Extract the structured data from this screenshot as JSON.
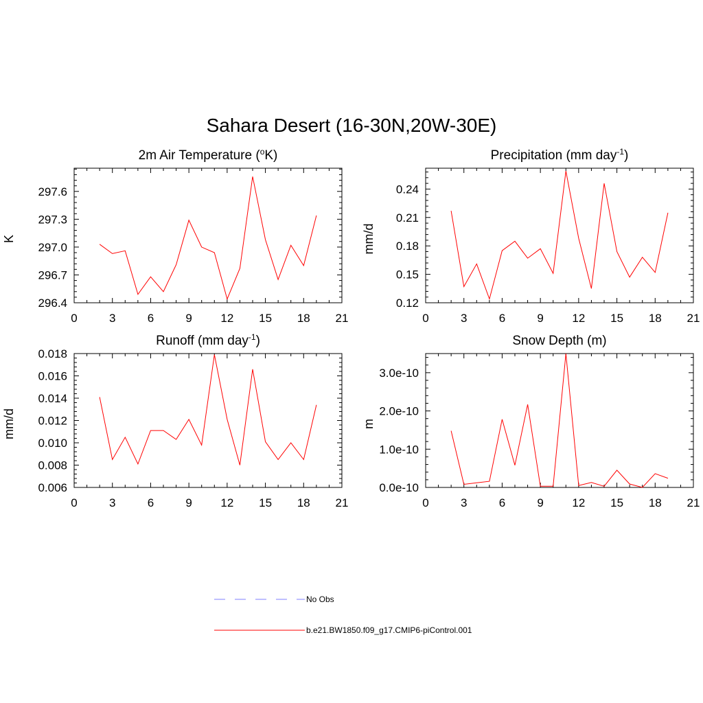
{
  "title": "Sahara Desert (16-30N,20W-30E)",
  "colors": {
    "model_line": "#ff0000",
    "obs_line": "#9999ff",
    "axis": "#000000"
  },
  "legend": [
    {
      "label": "No Obs",
      "style": "dashed",
      "color": "#9999ff"
    },
    {
      "label": "b.e21.BW1850.f09_g17.CMIP6-piControl.001",
      "style": "solid",
      "color": "#ff0000"
    }
  ],
  "chart_data": [
    {
      "type": "line",
      "title": "2m Air Temperature (",
      "title_sup": "o",
      "title_suffix": "K)",
      "ylabel": "K",
      "xlim": [
        0,
        21
      ],
      "ylim": [
        296.4,
        297.85
      ],
      "xticks": [
        "0",
        "3",
        "6",
        "9",
        "12",
        "15",
        "18",
        "21"
      ],
      "yticks": [
        296.4,
        296.7,
        297.0,
        297.3,
        297.6
      ],
      "ytick_labels": [
        "296.4",
        "296.7",
        "297.0",
        "297.3",
        "297.6"
      ],
      "series": [
        {
          "name": "b.e21.BW1850.f09_g17.CMIP6-piControl.001",
          "x": [
            2,
            3,
            4,
            5,
            6,
            7,
            8,
            9,
            10,
            11,
            12,
            13,
            14,
            15,
            16,
            17,
            18,
            19
          ],
          "values": [
            297.03,
            296.93,
            296.96,
            296.49,
            296.68,
            296.52,
            296.81,
            297.29,
            297.0,
            296.94,
            296.44,
            296.77,
            297.76,
            297.08,
            296.65,
            297.02,
            296.8,
            297.34
          ]
        }
      ]
    },
    {
      "type": "line",
      "title": "Precipitation (mm day",
      "title_sup": "-1",
      "title_suffix": ")",
      "ylabel": "mm/d",
      "xlim": [
        0,
        21
      ],
      "ylim": [
        0.12,
        0.262
      ],
      "xticks": [
        "0",
        "3",
        "6",
        "9",
        "12",
        "15",
        "18",
        "21"
      ],
      "yticks": [
        0.12,
        0.15,
        0.18,
        0.21,
        0.24
      ],
      "ytick_labels": [
        "0.12",
        "0.15",
        "0.18",
        "0.21",
        "0.24"
      ],
      "series": [
        {
          "name": "b.e21.BW1850.f09_g17.CMIP6-piControl.001",
          "x": [
            2,
            3,
            4,
            5,
            6,
            7,
            8,
            9,
            10,
            11,
            12,
            13,
            14,
            15,
            16,
            17,
            18,
            19
          ],
          "values": [
            0.217,
            0.137,
            0.161,
            0.124,
            0.175,
            0.185,
            0.167,
            0.177,
            0.151,
            0.259,
            0.188,
            0.135,
            0.246,
            0.174,
            0.147,
            0.168,
            0.152,
            0.215
          ]
        }
      ]
    },
    {
      "type": "line",
      "title": "Runoff (mm day",
      "title_sup": "-1",
      "title_suffix": ")",
      "ylabel": "mm/d",
      "xlim": [
        0,
        21
      ],
      "ylim": [
        0.006,
        0.018
      ],
      "xticks": [
        "0",
        "3",
        "6",
        "9",
        "12",
        "15",
        "18",
        "21"
      ],
      "yticks": [
        0.006,
        0.008,
        0.01,
        0.012,
        0.014,
        0.016,
        0.018
      ],
      "ytick_labels": [
        "0.006",
        "0.008",
        "0.010",
        "0.012",
        "0.014",
        "0.016",
        "0.018"
      ],
      "series": [
        {
          "name": "b.e21.BW1850.f09_g17.CMIP6-piControl.001",
          "x": [
            2,
            3,
            4,
            5,
            6,
            7,
            8,
            9,
            10,
            11,
            12,
            13,
            14,
            15,
            16,
            17,
            18,
            19
          ],
          "values": [
            0.0141,
            0.0085,
            0.0105,
            0.0081,
            0.0111,
            0.0111,
            0.0103,
            0.0121,
            0.0098,
            0.0179,
            0.0121,
            0.008,
            0.0166,
            0.0101,
            0.0085,
            0.01,
            0.0085,
            0.0134
          ]
        }
      ]
    },
    {
      "type": "line",
      "title": "Snow Depth (m)",
      "title_sup": "",
      "title_suffix": "",
      "ylabel": "m",
      "xlim": [
        0,
        21
      ],
      "ylim": [
        0,
        3.5e-10
      ],
      "xticks": [
        "0",
        "3",
        "6",
        "9",
        "12",
        "15",
        "18",
        "21"
      ],
      "yticks": [
        0,
        1e-10,
        2e-10,
        3e-10
      ],
      "ytick_labels": [
        "0.0e-10",
        "1.0e-10",
        "2.0e-10",
        "3.0e-10"
      ],
      "series": [
        {
          "name": "b.e21.BW1850.f09_g17.CMIP6-piControl.001",
          "x": [
            2,
            3,
            4,
            5,
            6,
            7,
            8,
            9,
            10,
            11,
            12,
            13,
            14,
            15,
            16,
            17,
            18,
            19
          ],
          "values": [
            1.48e-10,
            8e-12,
            1.2e-11,
            1.6e-11,
            1.78e-10,
            5.8e-11,
            2.17e-10,
            3e-12,
            3e-12,
            3.5e-10,
            5e-12,
            1.3e-11,
            3e-12,
            4.5e-11,
            9e-12,
            0.0,
            3.6e-11,
            2.4e-11
          ]
        }
      ]
    }
  ]
}
